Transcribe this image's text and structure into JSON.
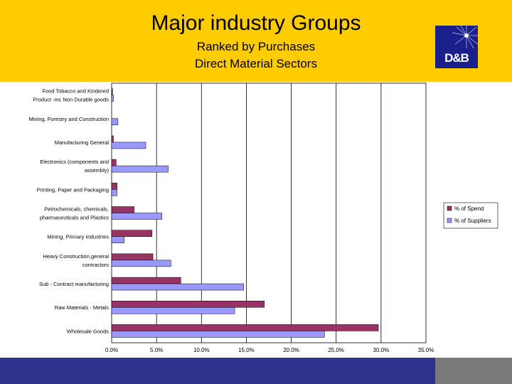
{
  "slide": {
    "title": "Major industry Groups",
    "subtitle_line1": "Ranked by Purchases",
    "subtitle_line2": "Direct Material Sectors",
    "logo_text": "D&B",
    "header_color": "#FFCC00",
    "footer_color": "#32338E"
  },
  "chart_data": {
    "type": "bar",
    "orientation": "horizontal",
    "categories": [
      [
        "Food Tobacco and Kindered",
        "Product -inc Non Durable goods"
      ],
      [
        "Mining, Forestry and Construction"
      ],
      [
        "Manufacturing General"
      ],
      [
        "Electronics (components and",
        "assembly)"
      ],
      [
        "Printing, Paper and Packaging"
      ],
      [
        "Petrochemicals, chemicals,",
        "pharmaceuticals and Plastics"
      ],
      [
        "Mining, Primary Industries"
      ],
      [
        "Heavy Construction,general",
        "contractors"
      ],
      [
        "Sub - Contract manufacturing"
      ],
      [
        "Raw Materials - Metals"
      ],
      [
        "Wholesale Goods"
      ]
    ],
    "series": [
      {
        "name": "% of Spend",
        "color": "#993366",
        "values": [
          0.1,
          0.0,
          0.2,
          0.5,
          0.6,
          2.5,
          4.5,
          4.6,
          7.7,
          17.0,
          29.7
        ]
      },
      {
        "name": "% of Suppliers",
        "color": "#9999FF",
        "values": [
          0.2,
          0.7,
          3.8,
          6.3,
          0.6,
          5.6,
          1.4,
          6.6,
          14.7,
          13.7,
          23.7
        ]
      }
    ],
    "xlim": [
      0,
      35
    ],
    "xticks": [
      "0.0%",
      "5.0%",
      "10.0%",
      "15.0%",
      "20.0%",
      "25.0%",
      "30.0%",
      "35.0%"
    ],
    "grid": "vertical",
    "legend_position": "right"
  }
}
